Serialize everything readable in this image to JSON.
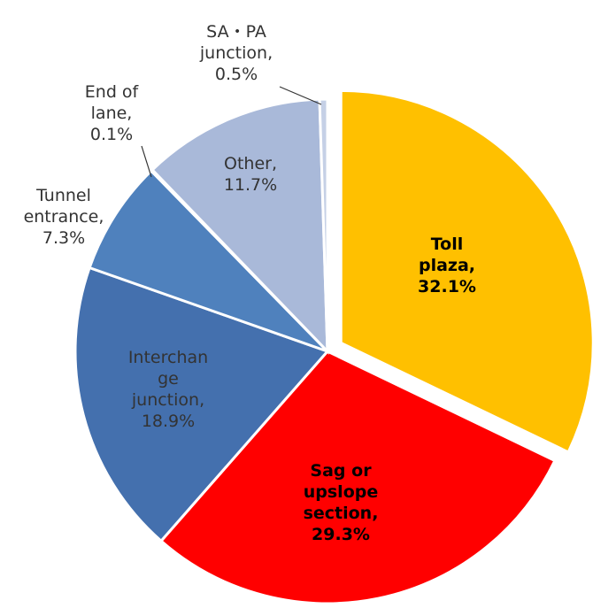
{
  "chart_data": {
    "type": "pie",
    "categories": [
      "Toll\nplaza,",
      "Sag or\nupslope\nsection,",
      "Interchan\nge\njunction,",
      "Tunnel\nentrance,",
      "End of\nlane,",
      "Other,",
      "SA・PA\njunction,"
    ],
    "values": [
      32.1,
      29.3,
      18.9,
      7.3,
      0.1,
      11.7,
      0.5
    ],
    "value_labels": [
      "32.1%",
      "29.3%",
      "18.9%",
      "7.3%",
      "0.1%",
      "11.7%",
      "0.5%"
    ],
    "colors": [
      "#FFC000",
      "#FF0000",
      "#4470AE",
      "#4F81BD",
      "#5A8ED0",
      "#A9B9D9",
      "#C5D0E6"
    ]
  }
}
